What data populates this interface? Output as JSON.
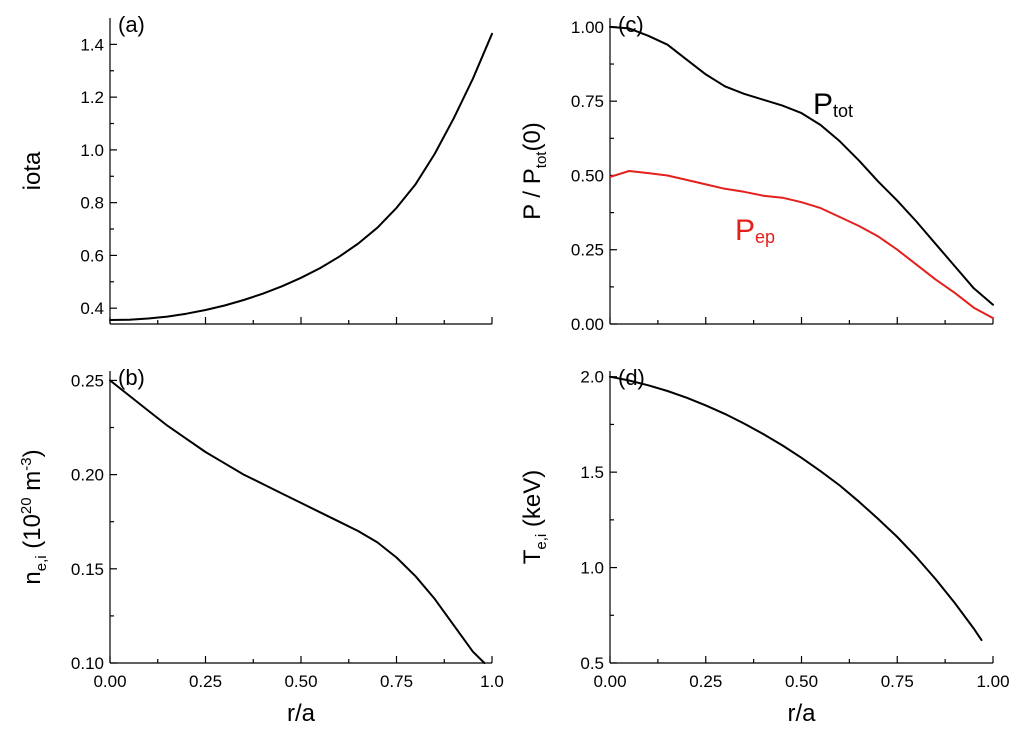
{
  "colors": {
    "black": "#000000",
    "red": "#e3201b"
  },
  "chart_data": [
    {
      "id": "a",
      "type": "line",
      "panel_label": "(a)",
      "ylabel": "iota",
      "xlabel": "",
      "xlim": [
        0,
        1
      ],
      "ylim": [
        0.34,
        1.5
      ],
      "yticks": [
        0.4,
        0.6,
        0.8,
        1.0,
        1.2,
        1.4
      ],
      "ytick_labels": [
        "0.4",
        "0.6",
        "0.8",
        "1.0",
        "1.2",
        "1.4"
      ],
      "xticks": [
        0,
        0.25,
        0.5,
        0.75,
        1.0
      ],
      "xtick_labels": [],
      "series": [
        {
          "name": "iota",
          "color": "#000000",
          "x": [
            0,
            0.05,
            0.1,
            0.15,
            0.2,
            0.25,
            0.3,
            0.35,
            0.4,
            0.45,
            0.5,
            0.55,
            0.6,
            0.65,
            0.7,
            0.75,
            0.8,
            0.85,
            0.9,
            0.95,
            1.0
          ],
          "y": [
            0.355,
            0.356,
            0.361,
            0.368,
            0.379,
            0.393,
            0.41,
            0.431,
            0.455,
            0.483,
            0.515,
            0.552,
            0.595,
            0.645,
            0.705,
            0.78,
            0.87,
            0.985,
            1.12,
            1.27,
            1.44
          ]
        }
      ]
    },
    {
      "id": "c",
      "type": "line",
      "panel_label": "(c)",
      "ylabel": "P / Ptot(0)",
      "ylabel_main": "P / P",
      "ylabel_sub": "tot",
      "ylabel_tail": "(0)",
      "xlabel": "",
      "xlim": [
        0,
        1
      ],
      "ylim": [
        0,
        1.03
      ],
      "yticks": [
        0,
        0.25,
        0.5,
        0.75,
        1.0
      ],
      "ytick_labels": [
        "0.00",
        "0.25",
        "0.50",
        "0.75",
        "1.00"
      ],
      "xticks": [
        0,
        0.25,
        0.5,
        0.75,
        1.0
      ],
      "xtick_labels": [],
      "series": [
        {
          "name": "Ptot",
          "label_main": "P",
          "label_sub": "tot",
          "color": "#000000",
          "x": [
            0,
            0.05,
            0.1,
            0.15,
            0.2,
            0.25,
            0.3,
            0.35,
            0.4,
            0.45,
            0.5,
            0.55,
            0.6,
            0.65,
            0.7,
            0.75,
            0.8,
            0.85,
            0.9,
            0.95,
            1.0
          ],
          "y": [
            1.0,
            0.995,
            0.97,
            0.94,
            0.89,
            0.84,
            0.8,
            0.775,
            0.755,
            0.735,
            0.71,
            0.67,
            0.615,
            0.55,
            0.48,
            0.415,
            0.345,
            0.27,
            0.195,
            0.12,
            0.065
          ]
        },
        {
          "name": "Pep",
          "label_main": "P",
          "label_sub": "ep",
          "color": "#e3201b",
          "x": [
            0,
            0.05,
            0.1,
            0.15,
            0.2,
            0.25,
            0.3,
            0.35,
            0.4,
            0.45,
            0.5,
            0.55,
            0.6,
            0.65,
            0.7,
            0.75,
            0.8,
            0.85,
            0.9,
            0.95,
            1.0
          ],
          "y": [
            0.495,
            0.515,
            0.508,
            0.5,
            0.485,
            0.47,
            0.455,
            0.445,
            0.432,
            0.425,
            0.41,
            0.39,
            0.36,
            0.33,
            0.295,
            0.25,
            0.2,
            0.15,
            0.105,
            0.055,
            0.02
          ]
        }
      ]
    },
    {
      "id": "b",
      "type": "line",
      "panel_label": "(b)",
      "ylabel": "ne,i (10^20 m^-3)",
      "ylabel_main": "n",
      "ylabel_sub": "e,i",
      "ylabel_mid": " (10",
      "ylabel_sup1": "20",
      "ylabel_mid2": " m",
      "ylabel_sup2": "-3",
      "ylabel_tail": ")",
      "xlabel": "r/a",
      "xlim": [
        0,
        1
      ],
      "ylim": [
        0.1,
        0.255
      ],
      "yticks": [
        0.1,
        0.15,
        0.2,
        0.25
      ],
      "ytick_labels": [
        "0.10",
        "0.15",
        "0.20",
        "0.25"
      ],
      "xticks": [
        0,
        0.25,
        0.5,
        0.75,
        1.0
      ],
      "xtick_labels": [
        "0.00",
        "0.25",
        "0.50",
        "0.75",
        "1.0"
      ],
      "series": [
        {
          "name": "ne,i",
          "color": "#000000",
          "x": [
            0,
            0.05,
            0.1,
            0.15,
            0.2,
            0.25,
            0.3,
            0.35,
            0.4,
            0.45,
            0.5,
            0.55,
            0.6,
            0.65,
            0.7,
            0.75,
            0.8,
            0.85,
            0.9,
            0.95,
            0.98
          ],
          "y": [
            0.25,
            0.242,
            0.234,
            0.226,
            0.219,
            0.212,
            0.206,
            0.2,
            0.195,
            0.19,
            0.185,
            0.18,
            0.175,
            0.17,
            0.164,
            0.156,
            0.146,
            0.134,
            0.12,
            0.106,
            0.1
          ]
        }
      ]
    },
    {
      "id": "d",
      "type": "line",
      "panel_label": "(d)",
      "ylabel": "Te,i (keV)",
      "ylabel_main": "T",
      "ylabel_sub": "e,i",
      "ylabel_tail": " (keV)",
      "xlabel": "r/a",
      "xlim": [
        0,
        1
      ],
      "ylim": [
        0.5,
        2.03
      ],
      "yticks": [
        0.5,
        1.0,
        1.5,
        2.0
      ],
      "ytick_labels": [
        "0.5",
        "1.0",
        "1.5",
        "2.0"
      ],
      "xticks": [
        0,
        0.25,
        0.5,
        0.75,
        1.0
      ],
      "xtick_labels": [
        "0.00",
        "0.25",
        "0.50",
        "0.75",
        "1.00"
      ],
      "series": [
        {
          "name": "Te,i",
          "color": "#000000",
          "x": [
            0,
            0.05,
            0.1,
            0.15,
            0.2,
            0.25,
            0.3,
            0.35,
            0.4,
            0.45,
            0.5,
            0.55,
            0.6,
            0.65,
            0.7,
            0.75,
            0.8,
            0.85,
            0.9,
            0.95,
            0.97
          ],
          "y": [
            2.0,
            1.98,
            1.955,
            1.925,
            1.89,
            1.85,
            1.805,
            1.755,
            1.7,
            1.64,
            1.575,
            1.505,
            1.43,
            1.345,
            1.255,
            1.16,
            1.055,
            0.94,
            0.815,
            0.68,
            0.62
          ]
        }
      ]
    }
  ]
}
